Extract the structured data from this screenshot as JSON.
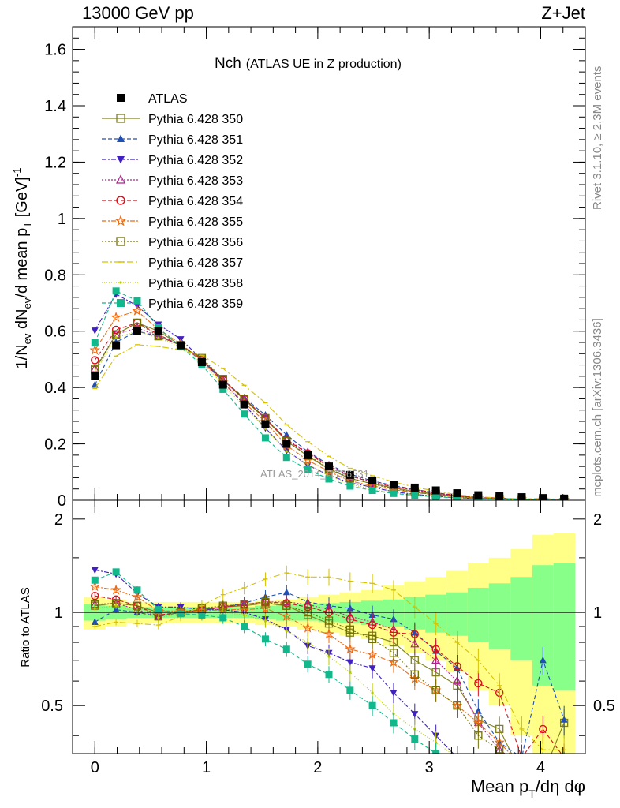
{
  "header": {
    "left": "13000 GeV pp",
    "right": "Z+Jet"
  },
  "side": {
    "rivet": "Rivet 3.1.10, ≥ 2.3M events",
    "mcplots": "mcplots.cern.ch [arXiv:1306.3436]"
  },
  "chart_data": {
    "type": "line",
    "title": "Nch",
    "subtitle": "(ATLAS UE in Z production)",
    "watermark": "ATLAS_2014_I1736531",
    "xlabel": "Mean p_T/dη dφ",
    "ylabel": "1/N_ev dN_ev/d mean p_T [GeV]^-1",
    "ratio_ylabel": "Ratio to ATLAS",
    "xlim": [
      -0.2,
      4.4
    ],
    "ylim": [
      0,
      1.68
    ],
    "ratio_ylim": [
      0.35,
      2.3
    ],
    "x_ticks": [
      "0",
      "1",
      "2",
      "3",
      "4"
    ],
    "y_ticks": [
      "0",
      "0.2",
      "0.4",
      "0.6",
      "0.8",
      "1",
      "1.2",
      "1.4",
      "1.6"
    ],
    "ratio_ticks": [
      "0.5",
      "1",
      "2"
    ],
    "x": [
      0.0,
      0.19,
      0.38,
      0.57,
      0.77,
      0.96,
      1.15,
      1.34,
      1.53,
      1.72,
      1.91,
      2.1,
      2.29,
      2.49,
      2.68,
      2.87,
      3.06,
      3.25,
      3.44,
      3.63,
      3.83,
      4.02,
      4.21
    ],
    "reference": {
      "name": "ATLAS",
      "values": [
        0.44,
        0.55,
        0.6,
        0.6,
        0.55,
        0.49,
        0.41,
        0.34,
        0.27,
        0.2,
        0.16,
        0.12,
        0.09,
        0.07,
        0.055,
        0.045,
        0.035,
        0.025,
        0.018,
        0.014,
        0.011,
        0.008,
        0.006
      ]
    },
    "ratio_band_inner": [
      0.06,
      0.05,
      0.04,
      0.04,
      0.04,
      0.04,
      0.04,
      0.04,
      0.05,
      0.06,
      0.06,
      0.07,
      0.08,
      0.09,
      0.1,
      0.12,
      0.14,
      0.16,
      0.2,
      0.24,
      0.3,
      0.42,
      0.44
    ],
    "ratio_band_outer": [
      0.12,
      0.1,
      0.08,
      0.08,
      0.08,
      0.08,
      0.08,
      0.08,
      0.09,
      0.1,
      0.12,
      0.14,
      0.16,
      0.18,
      0.22,
      0.26,
      0.3,
      0.36,
      0.44,
      0.5,
      0.6,
      0.78,
      0.8
    ],
    "series": [
      {
        "name": "Pythia 6.428 350",
        "color": "#808020",
        "marker": "square-open",
        "dash": "solid",
        "ratio": [
          1.05,
          1.07,
          1.05,
          1.0,
          1.0,
          1.02,
          1.04,
          1.05,
          1.07,
          1.05,
          0.98,
          0.92,
          0.86,
          0.84,
          0.8,
          0.7,
          0.64,
          0.58,
          0.45,
          0.42,
          0.3,
          0.3,
          0.44
        ]
      },
      {
        "name": "Pythia 6.428 351",
        "color": "#1f4fb4",
        "marker": "triangle-up",
        "dash": "5,3",
        "ratio": [
          0.93,
          1.02,
          1.0,
          0.97,
          1.0,
          1.01,
          1.04,
          1.07,
          1.12,
          1.16,
          1.08,
          1.05,
          1.03,
          0.98,
          0.95,
          0.86,
          0.75,
          0.66,
          0.48,
          0.38,
          0.34,
          0.7,
          0.45
        ]
      },
      {
        "name": "Pythia 6.428 352",
        "color": "#4020c0",
        "marker": "triangle-down",
        "dash": "6,2,2,2",
        "ratio": [
          1.37,
          1.33,
          1.15,
          1.04,
          1.04,
          1.02,
          1.02,
          1.0,
          0.95,
          0.88,
          0.78,
          0.74,
          0.69,
          0.66,
          0.55,
          0.47,
          0.4,
          0.34,
          0.3,
          0.3,
          0.3,
          0.3,
          0.3
        ]
      },
      {
        "name": "Pythia 6.428 353",
        "color": "#b0208c",
        "marker": "triangle-open",
        "dash": "2,2",
        "ratio": [
          1.06,
          1.07,
          1.02,
          0.97,
          1.0,
          1.02,
          1.04,
          1.06,
          1.08,
          1.08,
          1.06,
          1.02,
          0.97,
          0.93,
          0.88,
          0.79,
          0.7,
          0.6,
          0.44,
          0.36,
          0.32,
          0.32,
          0.32
        ]
      },
      {
        "name": "Pythia 6.428 354",
        "color": "#d8101c",
        "marker": "circle-open",
        "dash": "5,3",
        "ratio": [
          1.13,
          1.1,
          1.05,
          0.98,
          1.0,
          1.02,
          1.04,
          1.06,
          1.08,
          1.07,
          1.04,
          1.0,
          0.95,
          0.91,
          0.86,
          0.85,
          0.76,
          0.67,
          0.59,
          0.55,
          0.34,
          0.42,
          0.34
        ]
      },
      {
        "name": "Pythia 6.428 355",
        "color": "#ee6a10",
        "marker": "star-open",
        "dash": "6,2,2,2",
        "ratio": [
          1.21,
          1.18,
          1.12,
          1.01,
          1.01,
          1.01,
          1.02,
          1.02,
          1.03,
          0.97,
          0.89,
          0.85,
          0.76,
          0.73,
          0.69,
          0.61,
          0.56,
          0.5,
          0.44,
          0.38,
          0.32,
          0.32,
          0.32
        ]
      },
      {
        "name": "Pythia 6.428 356",
        "color": "#707000",
        "marker": "square-open",
        "dash": "2,2",
        "ratio": [
          1.06,
          1.07,
          1.05,
          0.97,
          1.0,
          1.03,
          1.05,
          1.06,
          1.08,
          1.05,
          1.0,
          0.94,
          0.88,
          0.82,
          0.74,
          0.63,
          0.56,
          0.5,
          0.4,
          0.36,
          0.32,
          0.32,
          0.32
        ]
      },
      {
        "name": "Pythia 6.428 357",
        "color": "#d6c200",
        "marker": "none",
        "dash": "8,3,2,3",
        "ratio": [
          0.9,
          0.93,
          0.92,
          0.91,
          0.97,
          1.05,
          1.14,
          1.2,
          1.28,
          1.34,
          1.3,
          1.3,
          1.26,
          1.24,
          1.18,
          1.04,
          0.92,
          0.8,
          0.7,
          0.58,
          0.42,
          0.36,
          0.36
        ]
      },
      {
        "name": "Pythia 6.428 358",
        "color": "#b8c800",
        "marker": "dot",
        "dash": "1,2",
        "ratio": [
          1.03,
          1.05,
          1.0,
          0.96,
          0.99,
          1.0,
          1.0,
          0.98,
          0.94,
          0.87,
          0.8,
          0.72,
          0.64,
          0.55,
          0.47,
          0.42,
          0.38,
          0.34,
          0.32,
          0.32,
          0.32,
          0.32,
          0.32
        ]
      },
      {
        "name": "Pythia 6.428 359",
        "color": "#10b88c",
        "marker": "square",
        "dash": "5,3",
        "ratio": [
          1.27,
          1.35,
          1.18,
          1.02,
          0.99,
          0.98,
          0.96,
          0.9,
          0.82,
          0.76,
          0.68,
          0.63,
          0.56,
          0.5,
          0.44,
          0.39,
          0.35,
          0.32,
          0.32,
          0.32,
          0.32,
          0.32,
          0.32
        ]
      }
    ]
  }
}
